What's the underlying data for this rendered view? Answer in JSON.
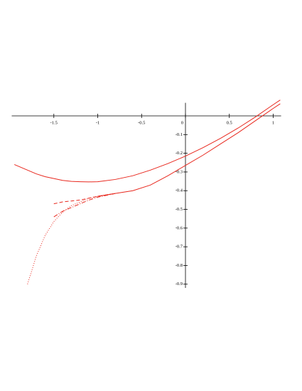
{
  "chart_data": {
    "type": "line",
    "x": [
      -1.95,
      -1.8,
      -1.7,
      -1.6,
      -1.5,
      -1.4,
      -1.3,
      -1.2,
      -1.1,
      -1.0,
      -0.8,
      -0.6,
      -0.4,
      -0.2,
      0,
      0.2,
      0.4,
      0.6,
      0.8,
      1.0,
      1.08
    ],
    "series": [
      {
        "color": "#e8281e",
        "style": "solid",
        "values": [
          -0.26,
          -0.29,
          -0.31,
          -0.325,
          -0.335,
          -0.345,
          -0.35,
          -0.352,
          -0.353,
          -0.352,
          -0.34,
          -0.32,
          -0.29,
          -0.255,
          -0.215,
          -0.17,
          -0.12,
          -0.065,
          -0.005,
          0.06,
          0.085
        ]
      },
      {
        "color": "#e8281e",
        "style": "solid",
        "values": [
          null,
          null,
          null,
          null,
          null,
          null,
          null,
          null,
          null,
          -0.43,
          -0.415,
          -0.4,
          -0.37,
          -0.32,
          -0.265,
          -0.21,
          -0.15,
          -0.09,
          -0.025,
          0.04,
          0.065
        ]
      },
      {
        "color": "#e8281e",
        "style": "dotted",
        "values": [
          null,
          -0.9,
          -0.75,
          -0.64,
          -0.565,
          -0.515,
          -0.48,
          -0.46,
          -0.44,
          -0.43,
          -0.415,
          null,
          null,
          null,
          null,
          null,
          null,
          null,
          null,
          null,
          null
        ]
      },
      {
        "color": "#e8281e",
        "style": "dashed",
        "values": [
          null,
          null,
          null,
          null,
          -0.47,
          -0.46,
          -0.455,
          -0.45,
          -0.44,
          -0.43,
          -0.415,
          null,
          null,
          null,
          null,
          null,
          null,
          null,
          null,
          null,
          null
        ]
      },
      {
        "color": "#e8281e",
        "style": "dashdot",
        "values": [
          null,
          null,
          null,
          null,
          -0.54,
          -0.51,
          -0.49,
          -0.47,
          -0.45,
          -0.435,
          -0.415,
          null,
          null,
          null,
          null,
          null,
          null,
          null,
          null,
          null,
          null
        ]
      }
    ],
    "xlim": [
      -1.98,
      1.09
    ],
    "ylim": [
      -0.92,
      0.07
    ],
    "xticks": [
      -1.5,
      -1,
      -0.5,
      0,
      0.5,
      1
    ],
    "yticks": [
      -0.1,
      -0.2,
      -0.3,
      -0.4,
      -0.5,
      -0.6,
      -0.7,
      -0.8,
      -0.9
    ],
    "grid": false
  }
}
